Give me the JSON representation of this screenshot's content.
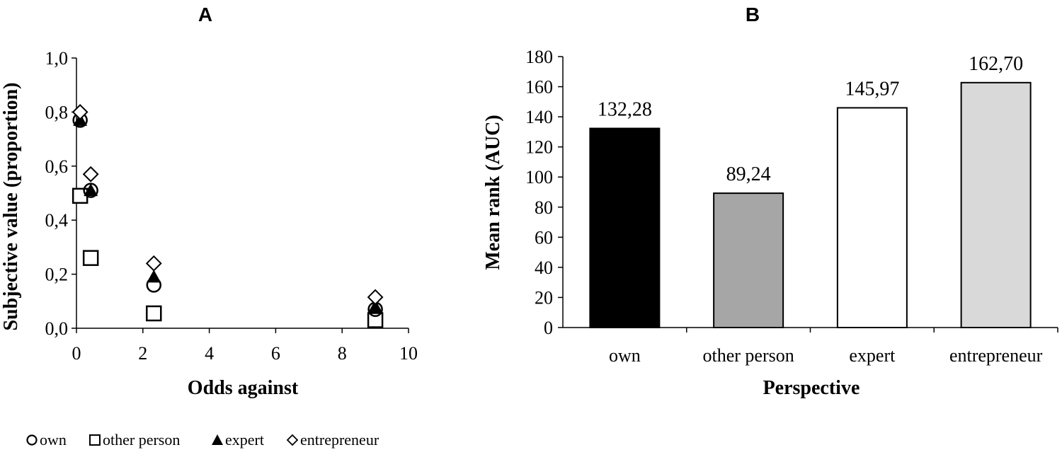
{
  "chart_data": [
    {
      "panel": "A",
      "type": "scatter",
      "xlabel": "Odds against",
      "ylabel": "Subjective value (proportion)",
      "xlim": [
        0,
        10
      ],
      "ylim": [
        0,
        1
      ],
      "x_ticks": [
        "0",
        "2",
        "4",
        "6",
        "8",
        "10"
      ],
      "y_ticks": [
        "0,0",
        "0,2",
        "0,4",
        "0,6",
        "0,8",
        "1,0"
      ],
      "legend_position": "bottom-left",
      "series": [
        {
          "name": "own",
          "marker": "open-circle",
          "points": [
            [
              0.11,
              0.77
            ],
            [
              0.43,
              0.51
            ],
            [
              2.33,
              0.16
            ],
            [
              9.0,
              0.07
            ]
          ]
        },
        {
          "name": "other person",
          "marker": "open-square",
          "points": [
            [
              0.11,
              0.49
            ],
            [
              0.43,
              0.26
            ],
            [
              2.33,
              0.055
            ],
            [
              9.0,
              0.03
            ]
          ]
        },
        {
          "name": "expert",
          "marker": "filled-triangle",
          "points": [
            [
              0.11,
              0.77
            ],
            [
              0.43,
              0.51
            ],
            [
              2.33,
              0.19
            ],
            [
              9.0,
              0.08
            ]
          ]
        },
        {
          "name": "entrepreneur",
          "marker": "open-diamond",
          "points": [
            [
              0.11,
              0.8
            ],
            [
              0.43,
              0.57
            ],
            [
              2.33,
              0.24
            ],
            [
              9.0,
              0.115
            ]
          ]
        }
      ]
    },
    {
      "panel": "B",
      "type": "bar",
      "xlabel": "Perspective",
      "ylabel": "Mean rank (AUC)",
      "ylim": [
        0,
        180
      ],
      "y_ticks": [
        "0",
        "20",
        "40",
        "60",
        "80",
        "100",
        "120",
        "140",
        "160",
        "180"
      ],
      "categories": [
        "own",
        "other person",
        "expert",
        "entrepreneur"
      ],
      "values": [
        132.28,
        89.24,
        145.97,
        162.7
      ],
      "value_labels": [
        "132,28",
        "89,24",
        "145,97",
        "162,70"
      ],
      "colors": [
        "#000000",
        "#a6a6a6",
        "#ffffff",
        "#d9d9d9"
      ]
    }
  ]
}
